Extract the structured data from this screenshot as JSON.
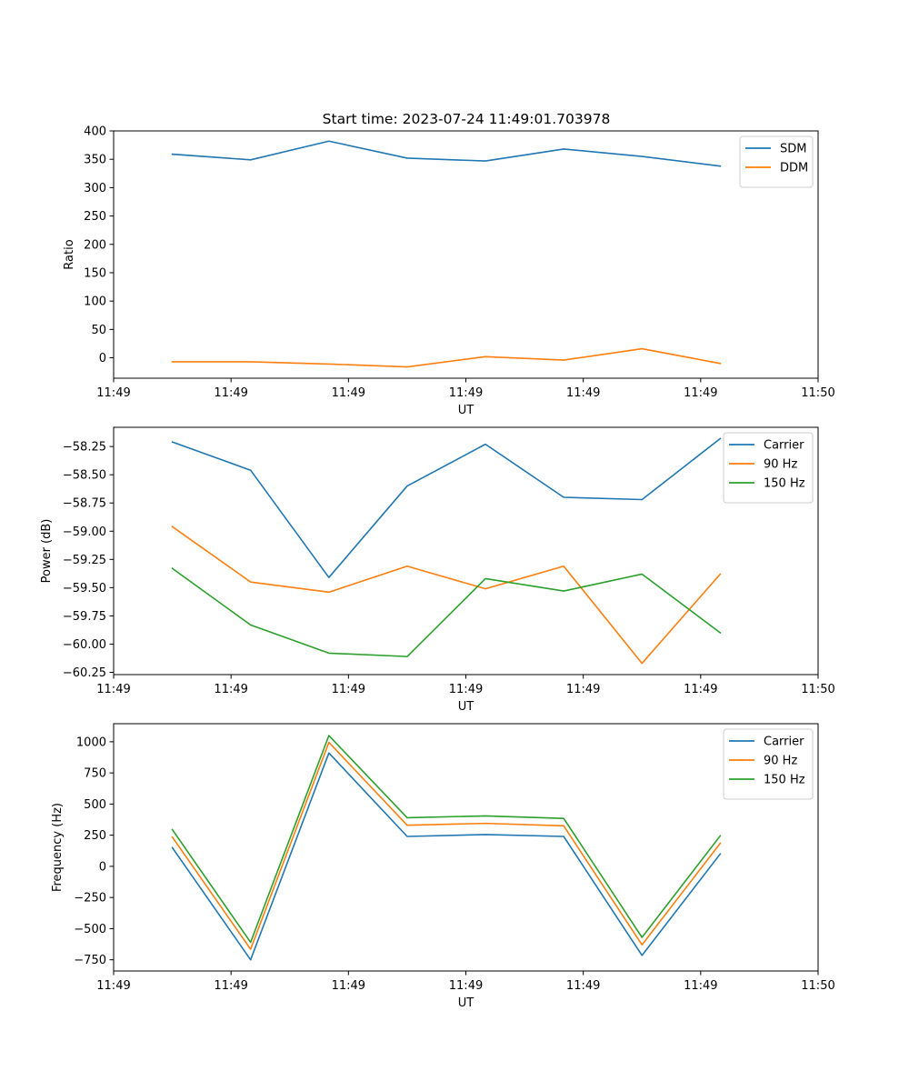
{
  "title": "Start time: 2023-07-24 11:49:01.703978",
  "chart_data": [
    {
      "type": "line",
      "title": "Start time: 2023-07-24 11:49:01.703978",
      "xlabel": "UT",
      "ylabel": "Ratio",
      "x": [
        1,
        2,
        3,
        4,
        5,
        6,
        7,
        8
      ],
      "xlim": [
        0.25,
        9.25
      ],
      "x_ticks": [
        {
          "x": 0.25,
          "label": "11:49"
        },
        {
          "x": 1.75,
          "label": "11:49"
        },
        {
          "x": 3.25,
          "label": "11:49"
        },
        {
          "x": 4.75,
          "label": "11:49"
        },
        {
          "x": 6.25,
          "label": "11:49"
        },
        {
          "x": 7.75,
          "label": "11:49"
        },
        {
          "x": 9.25,
          "label": "11:50"
        }
      ],
      "ylim": [
        -36,
        400
      ],
      "yticks": [
        0,
        50,
        100,
        150,
        200,
        250,
        300,
        350,
        400
      ],
      "ytick_labels": [
        "0",
        "50",
        "100",
        "150",
        "200",
        "250",
        "300",
        "350",
        "400"
      ],
      "legend_position": "top-right",
      "series": [
        {
          "name": "SDM",
          "color": "#1f77b4",
          "values": [
            359,
            349,
            382,
            352,
            347,
            368,
            355,
            338
          ]
        },
        {
          "name": "DDM",
          "color": "#ff7f0e",
          "values": [
            -7,
            -7,
            -11,
            -16,
            2,
            -4,
            16,
            -10
          ]
        }
      ]
    },
    {
      "type": "line",
      "title": "",
      "xlabel": "UT",
      "ylabel": "Power (dB)",
      "x": [
        1,
        2,
        3,
        4,
        5,
        6,
        7,
        8
      ],
      "xlim": [
        0.25,
        9.25
      ],
      "x_ticks": [
        {
          "x": 0.25,
          "label": "11:49"
        },
        {
          "x": 1.75,
          "label": "11:49"
        },
        {
          "x": 3.25,
          "label": "11:49"
        },
        {
          "x": 4.75,
          "label": "11:49"
        },
        {
          "x": 6.25,
          "label": "11:49"
        },
        {
          "x": 7.75,
          "label": "11:49"
        },
        {
          "x": 9.25,
          "label": "11:50"
        }
      ],
      "ylim": [
        -60.27,
        -58.08
      ],
      "yticks": [
        -60.25,
        -60.0,
        -59.75,
        -59.5,
        -59.25,
        -59.0,
        -58.75,
        -58.5,
        -58.25
      ],
      "ytick_labels": [
        "−60.25",
        "−60.00",
        "−59.75",
        "−59.50",
        "−59.25",
        "−59.00",
        "−58.75",
        "−58.50",
        "−58.25"
      ],
      "legend_position": "top-right",
      "series": [
        {
          "name": "Carrier",
          "color": "#1f77b4",
          "values": [
            -58.21,
            -58.46,
            -59.41,
            -58.6,
            -58.23,
            -58.7,
            -58.72,
            -58.18
          ]
        },
        {
          "name": "90 Hz",
          "color": "#ff7f0e",
          "values": [
            -58.96,
            -59.45,
            -59.54,
            -59.31,
            -59.51,
            -59.31,
            -60.17,
            -59.38
          ]
        },
        {
          "name": "150 Hz",
          "color": "#2ca02c",
          "values": [
            -59.33,
            -59.83,
            -60.08,
            -60.11,
            -59.42,
            -59.53,
            -59.38,
            -59.9
          ]
        }
      ]
    },
    {
      "type": "line",
      "title": "",
      "xlabel": "UT",
      "ylabel": "Frequency (Hz)",
      "x": [
        1,
        2,
        3,
        4,
        5,
        6,
        7,
        8
      ],
      "xlim": [
        0.25,
        9.25
      ],
      "x_ticks": [
        {
          "x": 0.25,
          "label": "11:49"
        },
        {
          "x": 1.75,
          "label": "11:49"
        },
        {
          "x": 3.25,
          "label": "11:49"
        },
        {
          "x": 4.75,
          "label": "11:49"
        },
        {
          "x": 6.25,
          "label": "11:49"
        },
        {
          "x": 7.75,
          "label": "11:49"
        },
        {
          "x": 9.25,
          "label": "11:50"
        }
      ],
      "ylim": [
        -840,
        1145
      ],
      "yticks": [
        -750,
        -500,
        -250,
        0,
        250,
        500,
        750,
        1000
      ],
      "ytick_labels": [
        "−750",
        "−500",
        "−250",
        "0",
        "250",
        "500",
        "750",
        "1000"
      ],
      "legend_position": "top-right",
      "series": [
        {
          "name": "Carrier",
          "color": "#1f77b4",
          "values": [
            150,
            -750,
            910,
            240,
            255,
            240,
            -715,
            100
          ]
        },
        {
          "name": "90 Hz",
          "color": "#ff7f0e",
          "values": [
            235,
            -665,
            995,
            330,
            345,
            325,
            -630,
            185
          ]
        },
        {
          "name": "150 Hz",
          "color": "#2ca02c",
          "values": [
            295,
            -610,
            1050,
            390,
            405,
            385,
            -570,
            245
          ]
        }
      ]
    }
  ]
}
